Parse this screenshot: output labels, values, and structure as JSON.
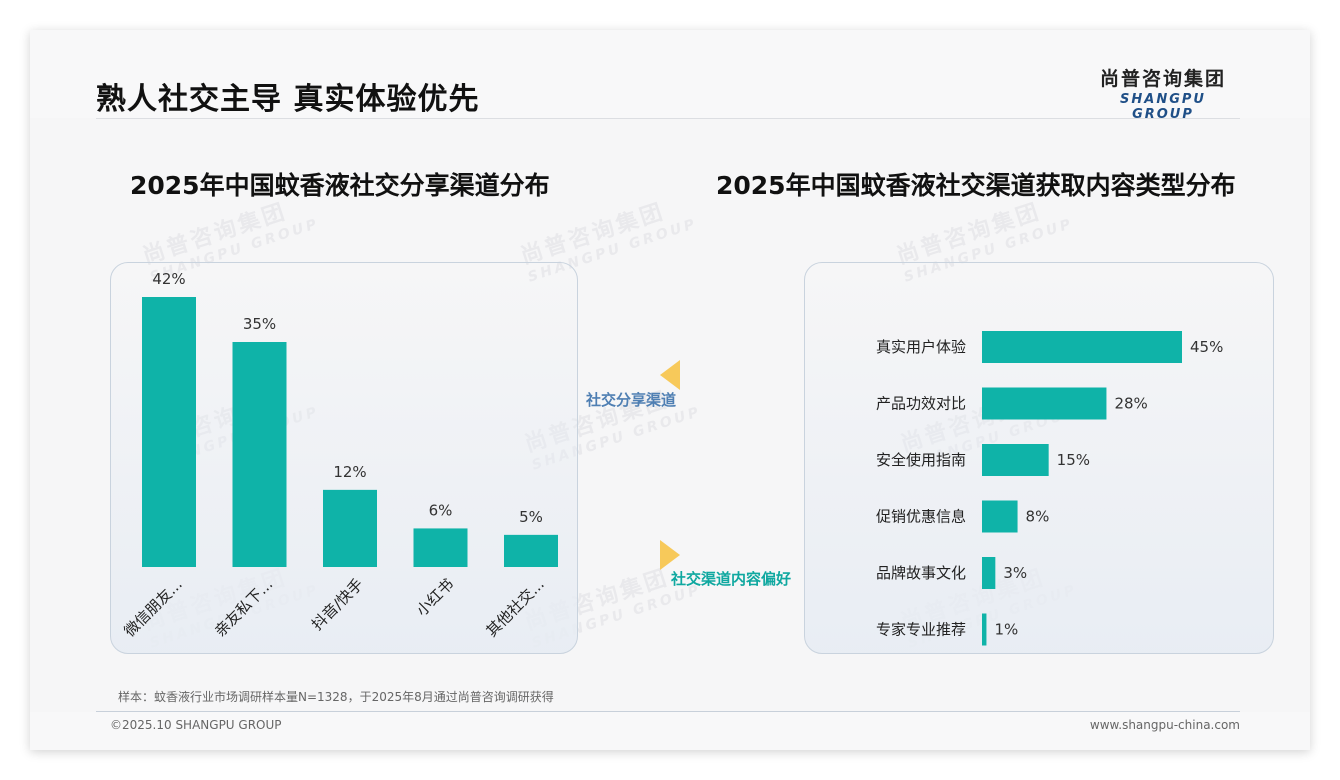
{
  "page": {
    "title": "熟人社交主导 真实体验优先",
    "logo_cn": "尚普咨询集团",
    "logo_en": "SHANGPU GROUP",
    "note": "样本：蚊香液行业市场调研样本量N=1328，于2025年8月通过尚普咨询调研获得",
    "copyright": "©2025.10 SHANGPU GROUP",
    "website": "www.shangpu-china.com",
    "watermark_cn": "尚普咨询集团",
    "watermark_en": "SHANGPU GROUP"
  },
  "connectors": {
    "left_label": "社交分享渠道",
    "right_label": "社交渠道内容偏好",
    "left_color": "#4f7fb3",
    "right_color": "#0fa8a0",
    "arrow_color": "#f7c95a"
  },
  "colors": {
    "bar": "#0fb3a8"
  },
  "chart_data": [
    {
      "type": "bar",
      "title": "2025年中国蚊香液社交分享渠道分布",
      "orientation": "vertical",
      "categories": [
        "微信朋友...",
        "亲友私下...",
        "抖音/快手",
        "小红书",
        "其他社交..."
      ],
      "values": [
        42,
        35,
        12,
        6,
        5
      ],
      "labels": [
        "42%",
        "35%",
        "12%",
        "6%",
        "5%"
      ],
      "unit": "%",
      "ylim": [
        0,
        42
      ],
      "grid": false,
      "legend": "none"
    },
    {
      "type": "bar",
      "title": "2025年中国蚊香液社交渠道获取内容类型分布",
      "orientation": "horizontal",
      "categories": [
        "真实用户体验",
        "产品功效对比",
        "安全使用指南",
        "促销优惠信息",
        "品牌故事文化",
        "专家专业推荐"
      ],
      "values": [
        45,
        28,
        15,
        8,
        3,
        1
      ],
      "labels": [
        "45%",
        "28%",
        "15%",
        "8%",
        "3%",
        "1%"
      ],
      "unit": "%",
      "xlim": [
        0,
        45
      ],
      "grid": false,
      "legend": "none"
    }
  ]
}
